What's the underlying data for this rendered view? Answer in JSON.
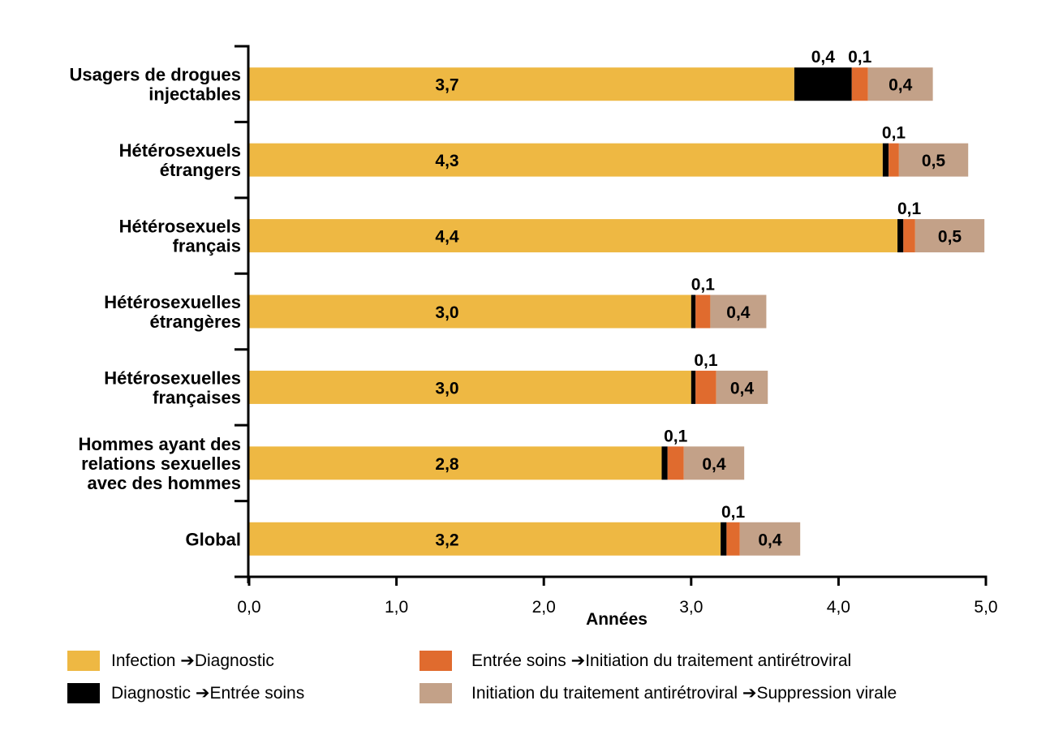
{
  "chart_data": {
    "type": "bar",
    "orientation": "horizontal",
    "stacked": true,
    "title": "",
    "xlabel": "Années",
    "ylabel": "",
    "xlim": [
      0,
      5
    ],
    "x_ticks": [
      0,
      1,
      2,
      3,
      4,
      5
    ],
    "x_tick_labels": [
      "0,0",
      "1,0",
      "2,0",
      "3,0",
      "4,0",
      "5,0"
    ],
    "grid": false,
    "legend_position": "bottom",
    "categories": [
      [
        "Usagers de drogues",
        "injectables"
      ],
      [
        "Hétérosexuels",
        "étrangers"
      ],
      [
        "Hétérosexuels",
        "français"
      ],
      [
        "Hétérosexuelles",
        "étrangères"
      ],
      [
        "Hétérosexuelles",
        "françaises"
      ],
      [
        "Hommes ayant des",
        "relations sexuelles",
        "avec des hommes"
      ],
      [
        "Global"
      ]
    ],
    "series": [
      {
        "name": "Infection ➔Diagnostic",
        "legend_prefix": "Infection ",
        "legend_suffix": "Diagnostic",
        "color": "#EEB843",
        "values": [
          3.7,
          4.3,
          4.4,
          3.0,
          3.0,
          2.8,
          3.2
        ],
        "labels": [
          "3,7",
          "4,3",
          "4,4",
          "3,0",
          "3,0",
          "2,8",
          "3,2"
        ]
      },
      {
        "name": "Diagnostic ➔Entrée soins",
        "legend_prefix": "Diagnostic ",
        "legend_suffix": "Entrée soins",
        "color": "#000000",
        "values": [
          0.39,
          0.04,
          0.04,
          0.03,
          0.03,
          0.04,
          0.04
        ],
        "labels": [
          "0,4",
          "",
          "",
          "",
          "",
          "",
          ""
        ]
      },
      {
        "name": "Entrée soins ➔Initiation du traitement antirétroviral",
        "legend_prefix": "Entrée soins ",
        "legend_suffix": "Initiation du traitement antirétroviral",
        "color": "#E06B2E",
        "values": [
          0.11,
          0.07,
          0.08,
          0.1,
          0.14,
          0.11,
          0.09
        ],
        "labels": [
          "0,1",
          "0,1",
          "0,1",
          "0,1",
          "0,1",
          "0,1",
          "0,1"
        ]
      },
      {
        "name": "Initiation du traitement antirétroviral ➔Suppression virale",
        "legend_prefix": "Initiation du traitement antirétroviral ",
        "legend_suffix": "Suppression virale",
        "color": "#C3A188",
        "values": [
          0.44,
          0.47,
          0.47,
          0.38,
          0.35,
          0.41,
          0.41
        ],
        "labels": [
          "0,4",
          "0,5",
          "0,5",
          "0,4",
          "0,4",
          "0,4",
          "0,4"
        ]
      }
    ]
  },
  "legend": {
    "arrow_glyph": "➔",
    "items": [
      {
        "prefix": "Infection ",
        "suffix": "Diagnostic",
        "color": "#EEB843"
      },
      {
        "prefix": "Diagnostic ",
        "suffix": "Entrée soins",
        "color": "#000000"
      },
      {
        "prefix": "Entrée soins ",
        "suffix": "Initiation du traitement antirétroviral",
        "color": "#E06B2E"
      },
      {
        "prefix": "Initiation du traitement antirétroviral ",
        "suffix": "Suppression virale",
        "color": "#C3A188"
      }
    ]
  }
}
